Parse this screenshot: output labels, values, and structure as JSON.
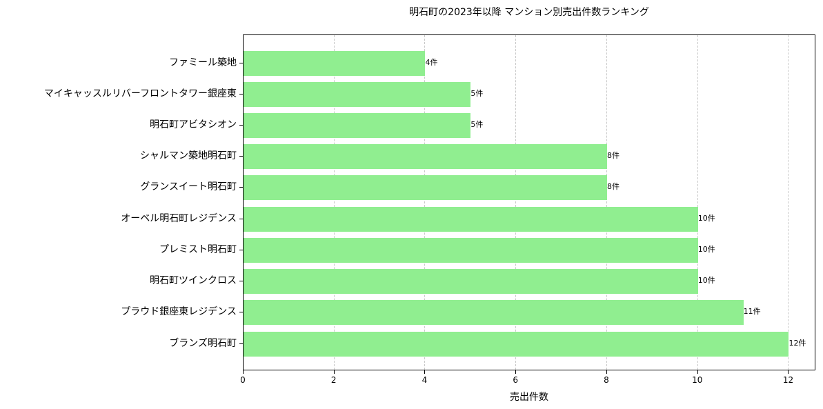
{
  "chart_data": {
    "type": "bar",
    "orientation": "horizontal",
    "title": "明石町の2023年以降 マンション別売出件数ランキング",
    "xlabel": "売出件数",
    "ylabel": "",
    "xlim": [
      0,
      12.6
    ],
    "xticks": [
      0,
      2,
      4,
      6,
      8,
      10,
      12
    ],
    "grid": "x dashed",
    "bar_color": "#90ee90",
    "categories": [
      "ファミール築地",
      "マイキャッスルリバーフロントタワー銀座東",
      "明石町アビタシオン",
      "シャルマン築地明石町",
      "グランスイート明石町",
      "オーベル明石町レジデンス",
      "プレミスト明石町",
      "明石町ツインクロス",
      "プラウド銀座東レジデンス",
      "ブランズ明石町"
    ],
    "values": [
      4,
      5,
      5,
      8,
      8,
      10,
      10,
      10,
      11,
      12
    ],
    "data_labels": [
      "4件",
      "5件",
      "5件",
      "8件",
      "8件",
      "10件",
      "10件",
      "10件",
      "11件",
      "12件"
    ]
  },
  "xtick_labels": [
    "0",
    "2",
    "4",
    "6",
    "8",
    "10",
    "12"
  ]
}
